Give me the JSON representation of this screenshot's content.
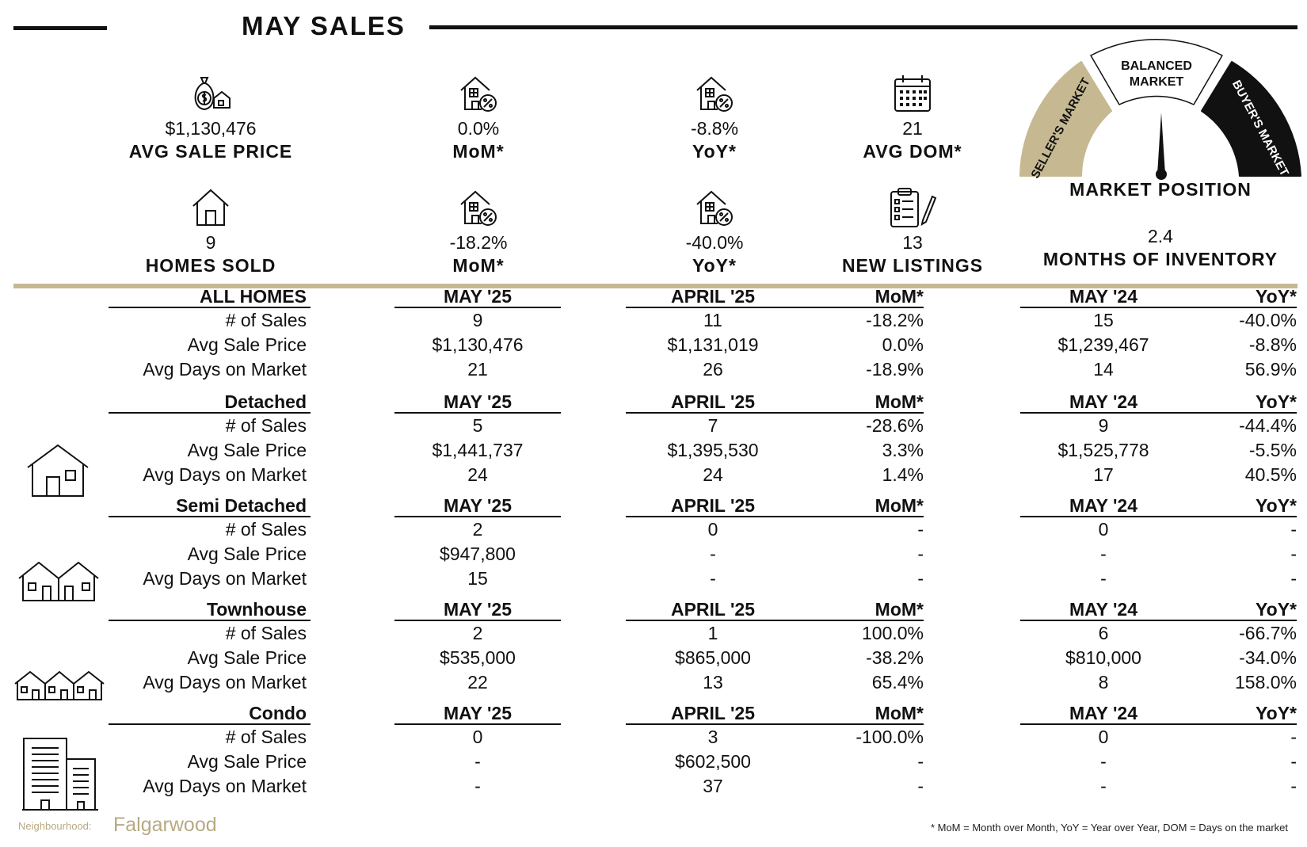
{
  "header": {
    "title": "MAY SALES"
  },
  "stats": [
    {
      "value": "$1,130,476",
      "label": "AVG SALE PRICE",
      "icon": "money-bag-house-icon"
    },
    {
      "value": "0.0%",
      "label": "MoM*",
      "icon": "house-percent-icon"
    },
    {
      "value": "-8.8%",
      "label": "YoY*",
      "icon": "house-percent-icon"
    },
    {
      "value": "21",
      "label": "AVG DOM*",
      "icon": "calendar-icon"
    },
    {
      "value": "9",
      "label": "HOMES SOLD",
      "icon": "house-icon"
    },
    {
      "value": "-18.2%",
      "label": "MoM*",
      "icon": "house-percent-icon"
    },
    {
      "value": "-40.0%",
      "label": "YoY*",
      "icon": "house-percent-icon"
    },
    {
      "value": "13",
      "label": "NEW LISTINGS",
      "icon": "clipboard-pen-icon"
    }
  ],
  "gauge": {
    "seller": "SELLER'S MARKET",
    "balanced_1": "BALANCED",
    "balanced_2": "MARKET",
    "buyer": "BUYER'S MARKET",
    "title": "MARKET POSITION",
    "inventory_value": "2.4",
    "inventory_label": "MONTHS OF INVENTORY",
    "colors": {
      "seller": "#c6b891",
      "balanced": "#ffffff",
      "buyer": "#111111"
    }
  },
  "table": {
    "sections": [
      {
        "name": "ALL HOMES",
        "icon": "",
        "headers": [
          "MAY '25",
          "APRIL '25",
          "MoM*",
          "MAY '24",
          "YoY*"
        ],
        "rows": [
          {
            "label": "# of Sales",
            "cells": [
              "9",
              "11",
              "-18.2%",
              "15",
              "-40.0%"
            ]
          },
          {
            "label": "Avg Sale Price",
            "cells": [
              "$1,130,476",
              "$1,131,019",
              "0.0%",
              "$1,239,467",
              "-8.8%"
            ]
          },
          {
            "label": "Avg Days on Market",
            "cells": [
              "21",
              "26",
              "-18.9%",
              "14",
              "56.9%"
            ]
          }
        ]
      },
      {
        "name": "Detached",
        "icon": "detached-house-icon",
        "headers": [
          "MAY '25",
          "APRIL '25",
          "MoM*",
          "MAY '24",
          "YoY*"
        ],
        "rows": [
          {
            "label": "# of Sales",
            "cells": [
              "5",
              "7",
              "-28.6%",
              "9",
              "-44.4%"
            ]
          },
          {
            "label": "Avg Sale Price",
            "cells": [
              "$1,441,737",
              "$1,395,530",
              "3.3%",
              "$1,525,778",
              "-5.5%"
            ]
          },
          {
            "label": "Avg Days on Market",
            "cells": [
              "24",
              "24",
              "1.4%",
              "17",
              "40.5%"
            ]
          }
        ]
      },
      {
        "name": "Semi Detached",
        "icon": "semi-detached-house-icon",
        "headers": [
          "MAY '25",
          "APRIL '25",
          "MoM*",
          "MAY '24",
          "YoY*"
        ],
        "rows": [
          {
            "label": "# of Sales",
            "cells": [
              "2",
              "0",
              "-",
              "0",
              "-"
            ]
          },
          {
            "label": "Avg Sale Price",
            "cells": [
              "$947,800",
              "-",
              "-",
              "-",
              "-"
            ]
          },
          {
            "label": "Avg Days on Market",
            "cells": [
              "15",
              "-",
              "-",
              "-",
              "-"
            ]
          }
        ]
      },
      {
        "name": "Townhouse",
        "icon": "townhouse-icon",
        "headers": [
          "MAY '25",
          "APRIL '25",
          "MoM*",
          "MAY '24",
          "YoY*"
        ],
        "rows": [
          {
            "label": "# of Sales",
            "cells": [
              "2",
              "1",
              "100.0%",
              "6",
              "-66.7%"
            ]
          },
          {
            "label": "Avg Sale Price",
            "cells": [
              "$535,000",
              "$865,000",
              "-38.2%",
              "$810,000",
              "-34.0%"
            ]
          },
          {
            "label": "Avg Days on Market",
            "cells": [
              "22",
              "13",
              "65.4%",
              "8",
              "158.0%"
            ]
          }
        ]
      },
      {
        "name": "Condo",
        "icon": "condo-building-icon",
        "headers": [
          "MAY '25",
          "APRIL '25",
          "MoM*",
          "MAY '24",
          "YoY*"
        ],
        "rows": [
          {
            "label": "# of Sales",
            "cells": [
              "0",
              "3",
              "-100.0%",
              "0",
              "-"
            ]
          },
          {
            "label": "Avg Sale Price",
            "cells": [
              "-",
              "$602,500",
              "-",
              "-",
              "-"
            ]
          },
          {
            "label": "Avg Days on Market",
            "cells": [
              "-",
              "37",
              "-",
              "-",
              "-"
            ]
          }
        ]
      }
    ]
  },
  "footer": {
    "neighbourhood_label": "Neighbourhood:",
    "neighbourhood_name": "Falgarwood",
    "note": "* MoM = Month over Month, YoY = Year over Year, DOM = Days on the market"
  }
}
